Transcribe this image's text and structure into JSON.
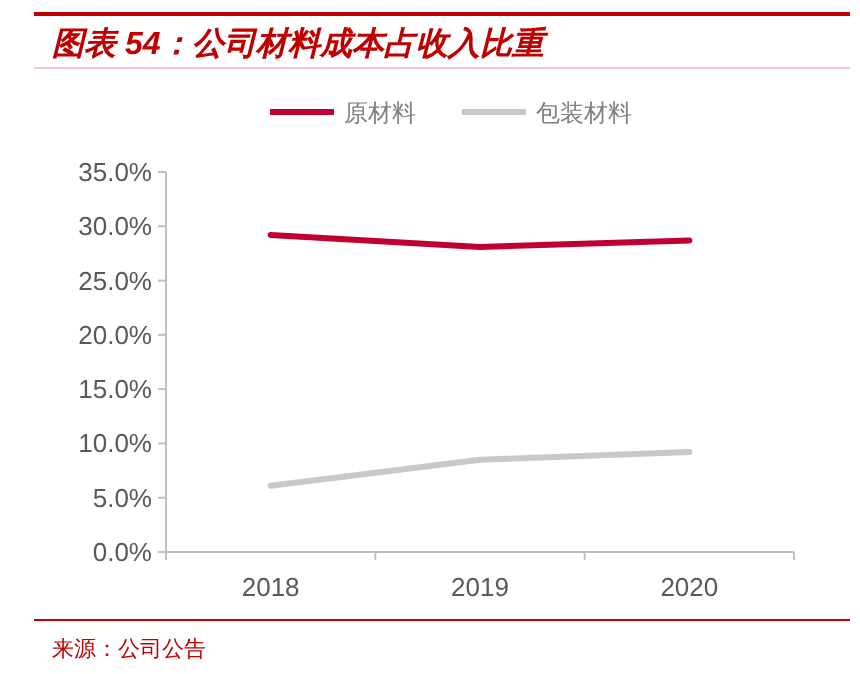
{
  "chart_data": {
    "type": "line",
    "title": "图表 54：公司材料成本占收入比重",
    "categories": [
      "2018",
      "2019",
      "2020"
    ],
    "series": [
      {
        "name": "原材料",
        "color": "#c00030",
        "values": [
          29.2,
          28.1,
          28.7
        ]
      },
      {
        "name": "包装材料",
        "color": "#c8c8c8",
        "values": [
          6.1,
          8.5,
          9.2
        ]
      }
    ],
    "ylim": [
      0,
      35
    ],
    "yticks": [
      {
        "value": 0,
        "label": "0.0%"
      },
      {
        "value": 5,
        "label": "5.0%"
      },
      {
        "value": 10,
        "label": "10.0%"
      },
      {
        "value": 15,
        "label": "15.0%"
      },
      {
        "value": 20,
        "label": "20.0%"
      },
      {
        "value": 25,
        "label": "25.0%"
      },
      {
        "value": 30,
        "label": "30.0%"
      },
      {
        "value": 35,
        "label": "35.0%"
      }
    ],
    "legend": "top",
    "grid": false,
    "marker": "none",
    "line_style": "solid",
    "annotations": [
      "来源：公司公告"
    ]
  }
}
